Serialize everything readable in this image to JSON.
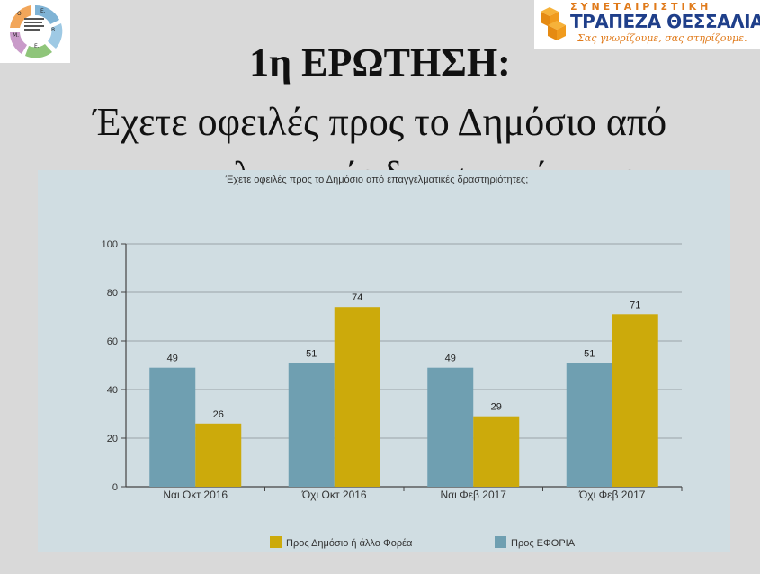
{
  "header": {
    "left_logo_icon": "cycle-diagram-logo",
    "left_logo_letters": [
      "Ο.",
      "Ε.",
      "Β.",
      "Ε.",
      "Μ."
    ],
    "bank_top": "ΣΥΝΕΤΑΙΡΙΣΤΙΚΗ",
    "bank_name": "ΤΡΑΠΕΖΑ ΘΕΣΣΑΛΙΑΣ",
    "bank_slogan": "Σας γνωρίζουμε, σας στηρίζουμε.",
    "bank_logo_icon": "orange-cubes-logo"
  },
  "slide": {
    "title_line1": "1η ΕΡΩΤΗΣΗ:",
    "title_line2": "Έχετε οφειλές προς το Δημόσιο από",
    "title_line3": "επαγγελματικές δραστηριότητες"
  },
  "colors": {
    "blue_series": "#6f9fb1",
    "yellow_series": "#ccaa0b",
    "panel": "#d0dde2",
    "grid": "#9aa4a8"
  },
  "chart_data": {
    "type": "bar",
    "title": "Έχετε οφειλές προς το Δημόσιο από επαγγελματικές δραστηριότητες;",
    "categories": [
      "Ναι Οκτ 2016",
      "Όχι Οκτ 2016",
      "Ναι Φεβ 2017",
      "Όχι Φεβ 2017"
    ],
    "series": [
      {
        "name": "Προς ΕΦΟΡΙΑ",
        "values": [
          49,
          51,
          49,
          51
        ],
        "color": "#6f9fb1"
      },
      {
        "name": "Προς Δημόσιο ή άλλο Φορέα",
        "values": [
          26,
          74,
          29,
          71
        ],
        "color": "#ccaa0b"
      }
    ],
    "legend_order": [
      "Προς Δημόσιο ή άλλο Φορέα",
      "Προς ΕΦΟΡΙΑ"
    ],
    "ylim": [
      0,
      100
    ],
    "yticks": [
      0,
      20,
      40,
      60,
      80,
      100
    ],
    "grid": true,
    "legend_position": "bottom",
    "data_labels": true
  }
}
